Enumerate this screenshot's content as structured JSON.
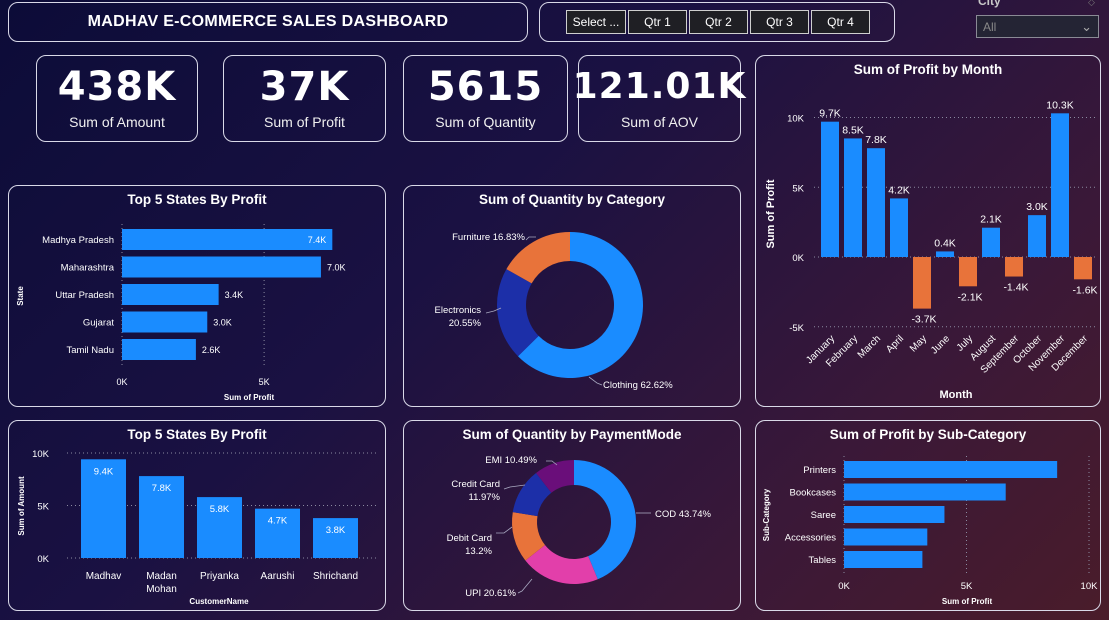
{
  "header": {
    "title": "MADHAV E-COMMERCE SALES DASHBOARD"
  },
  "slicer": {
    "buttons": [
      "Select ...",
      "Qtr 1",
      "Qtr 2",
      "Qtr 3",
      "Qtr 4"
    ]
  },
  "city_filter": {
    "label": "City",
    "value": "All",
    "arrow": "⌄"
  },
  "kpis": [
    {
      "value": "438K",
      "label": "Sum of Amount"
    },
    {
      "value": "37K",
      "label": "Sum of Profit"
    },
    {
      "value": "5615",
      "label": "Sum of Quantity"
    },
    {
      "value": "121.01K",
      "label": "Sum of AOV"
    }
  ],
  "colors": {
    "bar": "#1a8cff",
    "negative": "#e8733a",
    "donut_blue": "#1a8cff",
    "donut_navy": "#1c2fa8",
    "donut_orange": "#e8733a",
    "donut_pink": "#e23faa",
    "donut_purple": "#6a0e7a"
  },
  "chart_data": [
    {
      "id": "states",
      "type": "bar",
      "orientation": "horizontal",
      "title": "Top 5 States By Profit",
      "xlabel": "Sum of Profit",
      "ylabel": "State",
      "categories": [
        "Madhya Pradesh",
        "Maharashtra",
        "Uttar Pradesh",
        "Gujarat",
        "Tamil Nadu"
      ],
      "values": [
        7400,
        7000,
        3400,
        3000,
        2600
      ],
      "data_labels": [
        "7.4K",
        "7.0K",
        "3.4K",
        "3.0K",
        "2.6K"
      ],
      "xticks": [
        "0K",
        "5K"
      ],
      "xlim": [
        0,
        9500
      ]
    },
    {
      "id": "category",
      "type": "pie",
      "title": "Sum of Quantity by Category",
      "labels": [
        "Clothing",
        "Electronics",
        "Furniture"
      ],
      "values": [
        62.62,
        20.55,
        16.83
      ],
      "data_labels": [
        "Clothing 62.62%",
        "Electronics 20.55%",
        "Furniture 16.83%"
      ],
      "colors": [
        "#1a8cff",
        "#1c2fa8",
        "#e8733a"
      ]
    },
    {
      "id": "month",
      "type": "bar",
      "title": "Sum of Profit by Month",
      "xlabel": "Month",
      "ylabel": "Sum of Profit",
      "categories": [
        "January",
        "February",
        "March",
        "April",
        "May",
        "June",
        "July",
        "August",
        "September",
        "October",
        "November",
        "December"
      ],
      "values": [
        9700,
        8500,
        7800,
        4200,
        -3700,
        400,
        -2100,
        2100,
        -1400,
        3000,
        10300,
        -1600
      ],
      "data_labels": [
        "9.7K",
        "8.5K",
        "7.8K",
        "4.2K",
        "-3.7K",
        "0.4K",
        "-2.1K",
        "2.1K",
        "-1.4K",
        "3.0K",
        "10.3K",
        "-1.6K"
      ],
      "yticks": [
        "10K",
        "5K",
        "0K",
        "-5K"
      ],
      "ylim": [
        -5000,
        10000
      ]
    },
    {
      "id": "customers",
      "type": "bar",
      "title": "Top 5 States By Profit",
      "xlabel": "CustomerName",
      "ylabel": "Sum of Amount",
      "categories": [
        "Madhav",
        "Madan Mohan",
        "Priyanka",
        "Aarushi",
        "Shrichand"
      ],
      "category_lines": [
        [
          "Madhav"
        ],
        [
          "Madan",
          "Mohan"
        ],
        [
          "Priyanka"
        ],
        [
          "Aarushi"
        ],
        [
          "Shrichand"
        ]
      ],
      "values": [
        9400,
        7800,
        5800,
        4700,
        3800
      ],
      "data_labels": [
        "9.4K",
        "7.8K",
        "5.8K",
        "4.7K",
        "3.8K"
      ],
      "yticks": [
        "10K",
        "5K",
        "0K"
      ],
      "ylim": [
        0,
        10000
      ]
    },
    {
      "id": "payment",
      "type": "pie",
      "title": "Sum of Quantity by PaymentMode",
      "labels": [
        "COD",
        "UPI",
        "Debit Card",
        "Credit Card",
        "EMI"
      ],
      "values": [
        43.74,
        20.61,
        13.2,
        11.97,
        10.49
      ],
      "data_labels": [
        "COD 43.74%",
        "UPI 20.61%",
        "Debit Card 13.2%",
        "Credit Card 11.97%",
        "EMI 10.49%"
      ],
      "colors": [
        "#1a8cff",
        "#e23faa",
        "#e8733a",
        "#1c2fa8",
        "#6a0e7a"
      ]
    },
    {
      "id": "subcat",
      "type": "bar",
      "orientation": "horizontal",
      "title": "Sum of Profit by Sub-Category",
      "xlabel": "Sum of Profit",
      "ylabel": "Sub-Category",
      "categories": [
        "Printers",
        "Bookcases",
        "Saree",
        "Accessories",
        "Tables"
      ],
      "values": [
        8700,
        6600,
        4100,
        3400,
        3200
      ],
      "xticks": [
        "0K",
        "5K",
        "10K"
      ],
      "xlim": [
        0,
        10000
      ]
    }
  ]
}
